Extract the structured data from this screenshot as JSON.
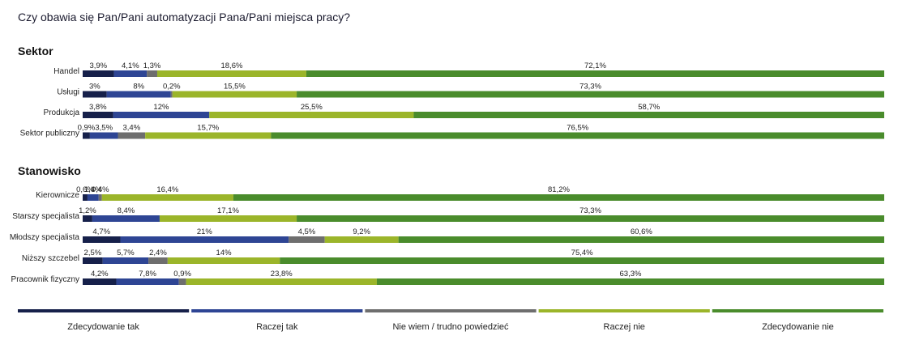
{
  "chart_data": {
    "type": "bar",
    "stacked": true,
    "orientation": "horizontal",
    "normalized": true,
    "title": "Czy obawia się Pan/Pani automatyzacji Pana/Pani miejsca pracy?",
    "legend_position": "bottom",
    "series": [
      {
        "name": "Zdecydowanie tak",
        "color": "#16204a"
      },
      {
        "name": "Raczej tak",
        "color": "#2e4594"
      },
      {
        "name": "Nie wiem / trudno powiedzieć",
        "color": "#6e6e6e"
      },
      {
        "name": "Raczej nie",
        "color": "#9bb52a"
      },
      {
        "name": "Zdecydowanie nie",
        "color": "#4a8c2c"
      }
    ],
    "groups": [
      {
        "label": "Sektor",
        "rows": [
          {
            "category": "Handel",
            "values": [
              3.9,
              4.1,
              1.3,
              18.6,
              72.1
            ],
            "labels": [
              "3,9%",
              "4,1%",
              "1,3%",
              "18,6%",
              "72,1%"
            ]
          },
          {
            "category": "Usługi",
            "values": [
              3,
              8,
              0.2,
              15.5,
              73.3
            ],
            "labels": [
              "3%",
              "8%",
              "0,2%",
              "15,5%",
              "73,3%"
            ]
          },
          {
            "category": "Produkcja",
            "values": [
              3.8,
              12,
              0,
              25.5,
              58.7
            ],
            "labels": [
              "3,8%",
              "12%",
              "",
              "25,5%",
              "58,7%"
            ]
          },
          {
            "category": "Sektor publiczny",
            "values": [
              0.9,
              3.5,
              3.4,
              15.7,
              76.5
            ],
            "labels": [
              "0,9%",
              "3,5%",
              "3,4%",
              "15,7%",
              "76,5%"
            ]
          }
        ]
      },
      {
        "label": "Stanowisko",
        "rows": [
          {
            "category": "Kierownicze",
            "values": [
              0.6,
              1.4,
              0.4,
              16.4,
              81.2
            ],
            "labels": [
              "0,6%",
              "1,4%",
              "0,4%",
              "16,4%",
              "81,2%"
            ]
          },
          {
            "category": "Starszy specjalista",
            "values": [
              1.2,
              8.4,
              0,
              17.1,
              73.3
            ],
            "labels": [
              "1,2%",
              "8,4%",
              "",
              "17,1%",
              "73,3%"
            ]
          },
          {
            "category": "Młodszy specjalista",
            "values": [
              4.7,
              21,
              4.5,
              9.2,
              60.6
            ],
            "labels": [
              "4,7%",
              "21%",
              "4,5%",
              "9,2%",
              "60,6%"
            ]
          },
          {
            "category": "Niższy szczebel",
            "values": [
              2.5,
              5.7,
              2.4,
              14,
              75.4
            ],
            "labels": [
              "2,5%",
              "5,7%",
              "2,4%",
              "14%",
              "75,4%"
            ]
          },
          {
            "category": "Pracownik fizyczny",
            "values": [
              4.2,
              7.8,
              0.9,
              23.8,
              63.3
            ],
            "labels": [
              "4,2%",
              "7,8%",
              "0,9%",
              "23,8%",
              "63,3%"
            ]
          }
        ]
      }
    ]
  }
}
